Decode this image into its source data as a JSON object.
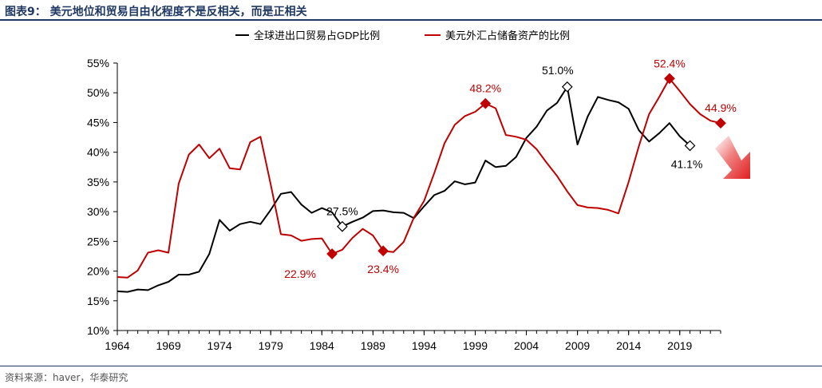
{
  "figure": {
    "title": "图表9：  美元地位和贸易自由化程度不是反相关，而是正相关",
    "source": "资料来源：haver，华泰研究"
  },
  "colors": {
    "series_black": "#000000",
    "series_red": "#c00000",
    "header": "#1f3864",
    "arrow": "#e02020"
  },
  "chart_data": {
    "type": "line",
    "title": "美元地位和贸易自由化程度不是反相关，而是正相关",
    "xlabel": "",
    "ylabel": "",
    "xlim": [
      1964,
      2023
    ],
    "ylim": [
      10,
      55
    ],
    "xticks": [
      1964,
      1969,
      1974,
      1979,
      1984,
      1989,
      1994,
      1999,
      2004,
      2009,
      2014,
      2019
    ],
    "yticks": [
      10,
      15,
      20,
      25,
      30,
      35,
      40,
      45,
      50,
      55
    ],
    "ytick_labels": [
      "10%",
      "15%",
      "20%",
      "25%",
      "30%",
      "35%",
      "40%",
      "45%",
      "50%",
      "55%"
    ],
    "legend_position": "top",
    "series": [
      {
        "name": "全球进出口贸易占GDP比例",
        "color": "#000000",
        "points": [
          [
            1964,
            16.6
          ],
          [
            1965,
            16.5
          ],
          [
            1966,
            16.9
          ],
          [
            1967,
            16.8
          ],
          [
            1968,
            17.6
          ],
          [
            1969,
            18.2
          ],
          [
            1970,
            19.4
          ],
          [
            1971,
            19.4
          ],
          [
            1972,
            19.9
          ],
          [
            1973,
            22.9
          ],
          [
            1974,
            28.6
          ],
          [
            1975,
            26.8
          ],
          [
            1976,
            27.9
          ],
          [
            1977,
            28.3
          ],
          [
            1978,
            27.9
          ],
          [
            1979,
            30.3
          ],
          [
            1980,
            33.0
          ],
          [
            1981,
            33.3
          ],
          [
            1982,
            31.2
          ],
          [
            1983,
            29.8
          ],
          [
            1984,
            30.6
          ],
          [
            1985,
            29.9
          ],
          [
            1986,
            27.5
          ],
          [
            1987,
            28.3
          ],
          [
            1988,
            29.0
          ],
          [
            1989,
            30.1
          ],
          [
            1990,
            30.2
          ],
          [
            1991,
            29.9
          ],
          [
            1992,
            29.8
          ],
          [
            1993,
            28.9
          ],
          [
            1994,
            30.9
          ],
          [
            1995,
            32.8
          ],
          [
            1996,
            33.5
          ],
          [
            1997,
            35.1
          ],
          [
            1998,
            34.6
          ],
          [
            1999,
            34.9
          ],
          [
            2000,
            38.6
          ],
          [
            2001,
            37.5
          ],
          [
            2002,
            37.7
          ],
          [
            2003,
            39.2
          ],
          [
            2004,
            42.4
          ],
          [
            2005,
            44.3
          ],
          [
            2006,
            47.0
          ],
          [
            2007,
            48.3
          ],
          [
            2008,
            51.0
          ],
          [
            2009,
            41.3
          ],
          [
            2010,
            46.0
          ],
          [
            2011,
            49.3
          ],
          [
            2012,
            48.8
          ],
          [
            2013,
            48.4
          ],
          [
            2014,
            47.3
          ],
          [
            2015,
            43.7
          ],
          [
            2016,
            41.8
          ],
          [
            2017,
            43.2
          ],
          [
            2018,
            44.9
          ],
          [
            2019,
            42.7
          ],
          [
            2020,
            41.1
          ]
        ]
      },
      {
        "name": "美元外汇占储备资产的比例",
        "color": "#c00000",
        "points": [
          [
            1964,
            19.0
          ],
          [
            1965,
            18.9
          ],
          [
            1966,
            20.1
          ],
          [
            1967,
            23.1
          ],
          [
            1968,
            23.5
          ],
          [
            1969,
            23.1
          ],
          [
            1970,
            34.7
          ],
          [
            1971,
            39.6
          ],
          [
            1972,
            41.3
          ],
          [
            1973,
            39.0
          ],
          [
            1974,
            40.6
          ],
          [
            1975,
            37.3
          ],
          [
            1976,
            37.1
          ],
          [
            1977,
            41.7
          ],
          [
            1978,
            42.6
          ],
          [
            1979,
            34.6
          ],
          [
            1980,
            26.2
          ],
          [
            1981,
            26.0
          ],
          [
            1982,
            25.1
          ],
          [
            1983,
            25.4
          ],
          [
            1984,
            25.5
          ],
          [
            1985,
            22.9
          ],
          [
            1986,
            23.6
          ],
          [
            1987,
            25.6
          ],
          [
            1988,
            27.1
          ],
          [
            1989,
            26.0
          ],
          [
            1990,
            23.4
          ],
          [
            1991,
            23.2
          ],
          [
            1992,
            24.9
          ],
          [
            1993,
            29.0
          ],
          [
            1994,
            31.8
          ],
          [
            1995,
            36.5
          ],
          [
            1996,
            41.5
          ],
          [
            1997,
            44.6
          ],
          [
            1998,
            46.1
          ],
          [
            1999,
            46.8
          ],
          [
            2000,
            48.2
          ],
          [
            2001,
            47.4
          ],
          [
            2002,
            42.9
          ],
          [
            2003,
            42.6
          ],
          [
            2004,
            42.1
          ],
          [
            2005,
            40.5
          ],
          [
            2006,
            38.2
          ],
          [
            2007,
            36.0
          ],
          [
            2008,
            33.4
          ],
          [
            2009,
            31.1
          ],
          [
            2010,
            30.7
          ],
          [
            2011,
            30.6
          ],
          [
            2012,
            30.3
          ],
          [
            2013,
            29.7
          ],
          [
            2014,
            35.0
          ],
          [
            2015,
            41.0
          ],
          [
            2016,
            46.4
          ],
          [
            2017,
            49.3
          ],
          [
            2018,
            52.4
          ],
          [
            2019,
            50.3
          ],
          [
            2020,
            48.1
          ],
          [
            2021,
            46.4
          ],
          [
            2022,
            45.3
          ],
          [
            2023,
            44.9
          ]
        ]
      }
    ],
    "markers": [
      {
        "series": 0,
        "x": 1986,
        "y": 27.5,
        "label": "27.5%",
        "style": "open-diamond",
        "color": "#000000",
        "label_pos": "above"
      },
      {
        "series": 0,
        "x": 2008,
        "y": 51.0,
        "label": "51.0%",
        "style": "open-diamond",
        "color": "#000000",
        "label_pos": "above-left"
      },
      {
        "series": 0,
        "x": 2020,
        "y": 41.1,
        "label": "41.1%",
        "style": "open-diamond",
        "color": "#000000",
        "label_pos": "below-left"
      },
      {
        "series": 1,
        "x": 1985,
        "y": 22.9,
        "label": "22.9%",
        "style": "filled-diamond",
        "color": "#c00000",
        "label_pos": "below-left"
      },
      {
        "series": 1,
        "x": 1990,
        "y": 23.4,
        "label": "23.4%",
        "style": "filled-diamond",
        "color": "#c00000",
        "label_pos": "below"
      },
      {
        "series": 1,
        "x": 2000,
        "y": 48.2,
        "label": "48.2%",
        "style": "filled-diamond",
        "color": "#c00000",
        "label_pos": "above"
      },
      {
        "series": 1,
        "x": 2018,
        "y": 52.4,
        "label": "52.4%",
        "style": "filled-diamond",
        "color": "#c00000",
        "label_pos": "above"
      },
      {
        "series": 1,
        "x": 2023,
        "y": 44.9,
        "label": "44.9%",
        "style": "filled-diamond",
        "color": "#c00000",
        "label_pos": "above"
      }
    ]
  }
}
